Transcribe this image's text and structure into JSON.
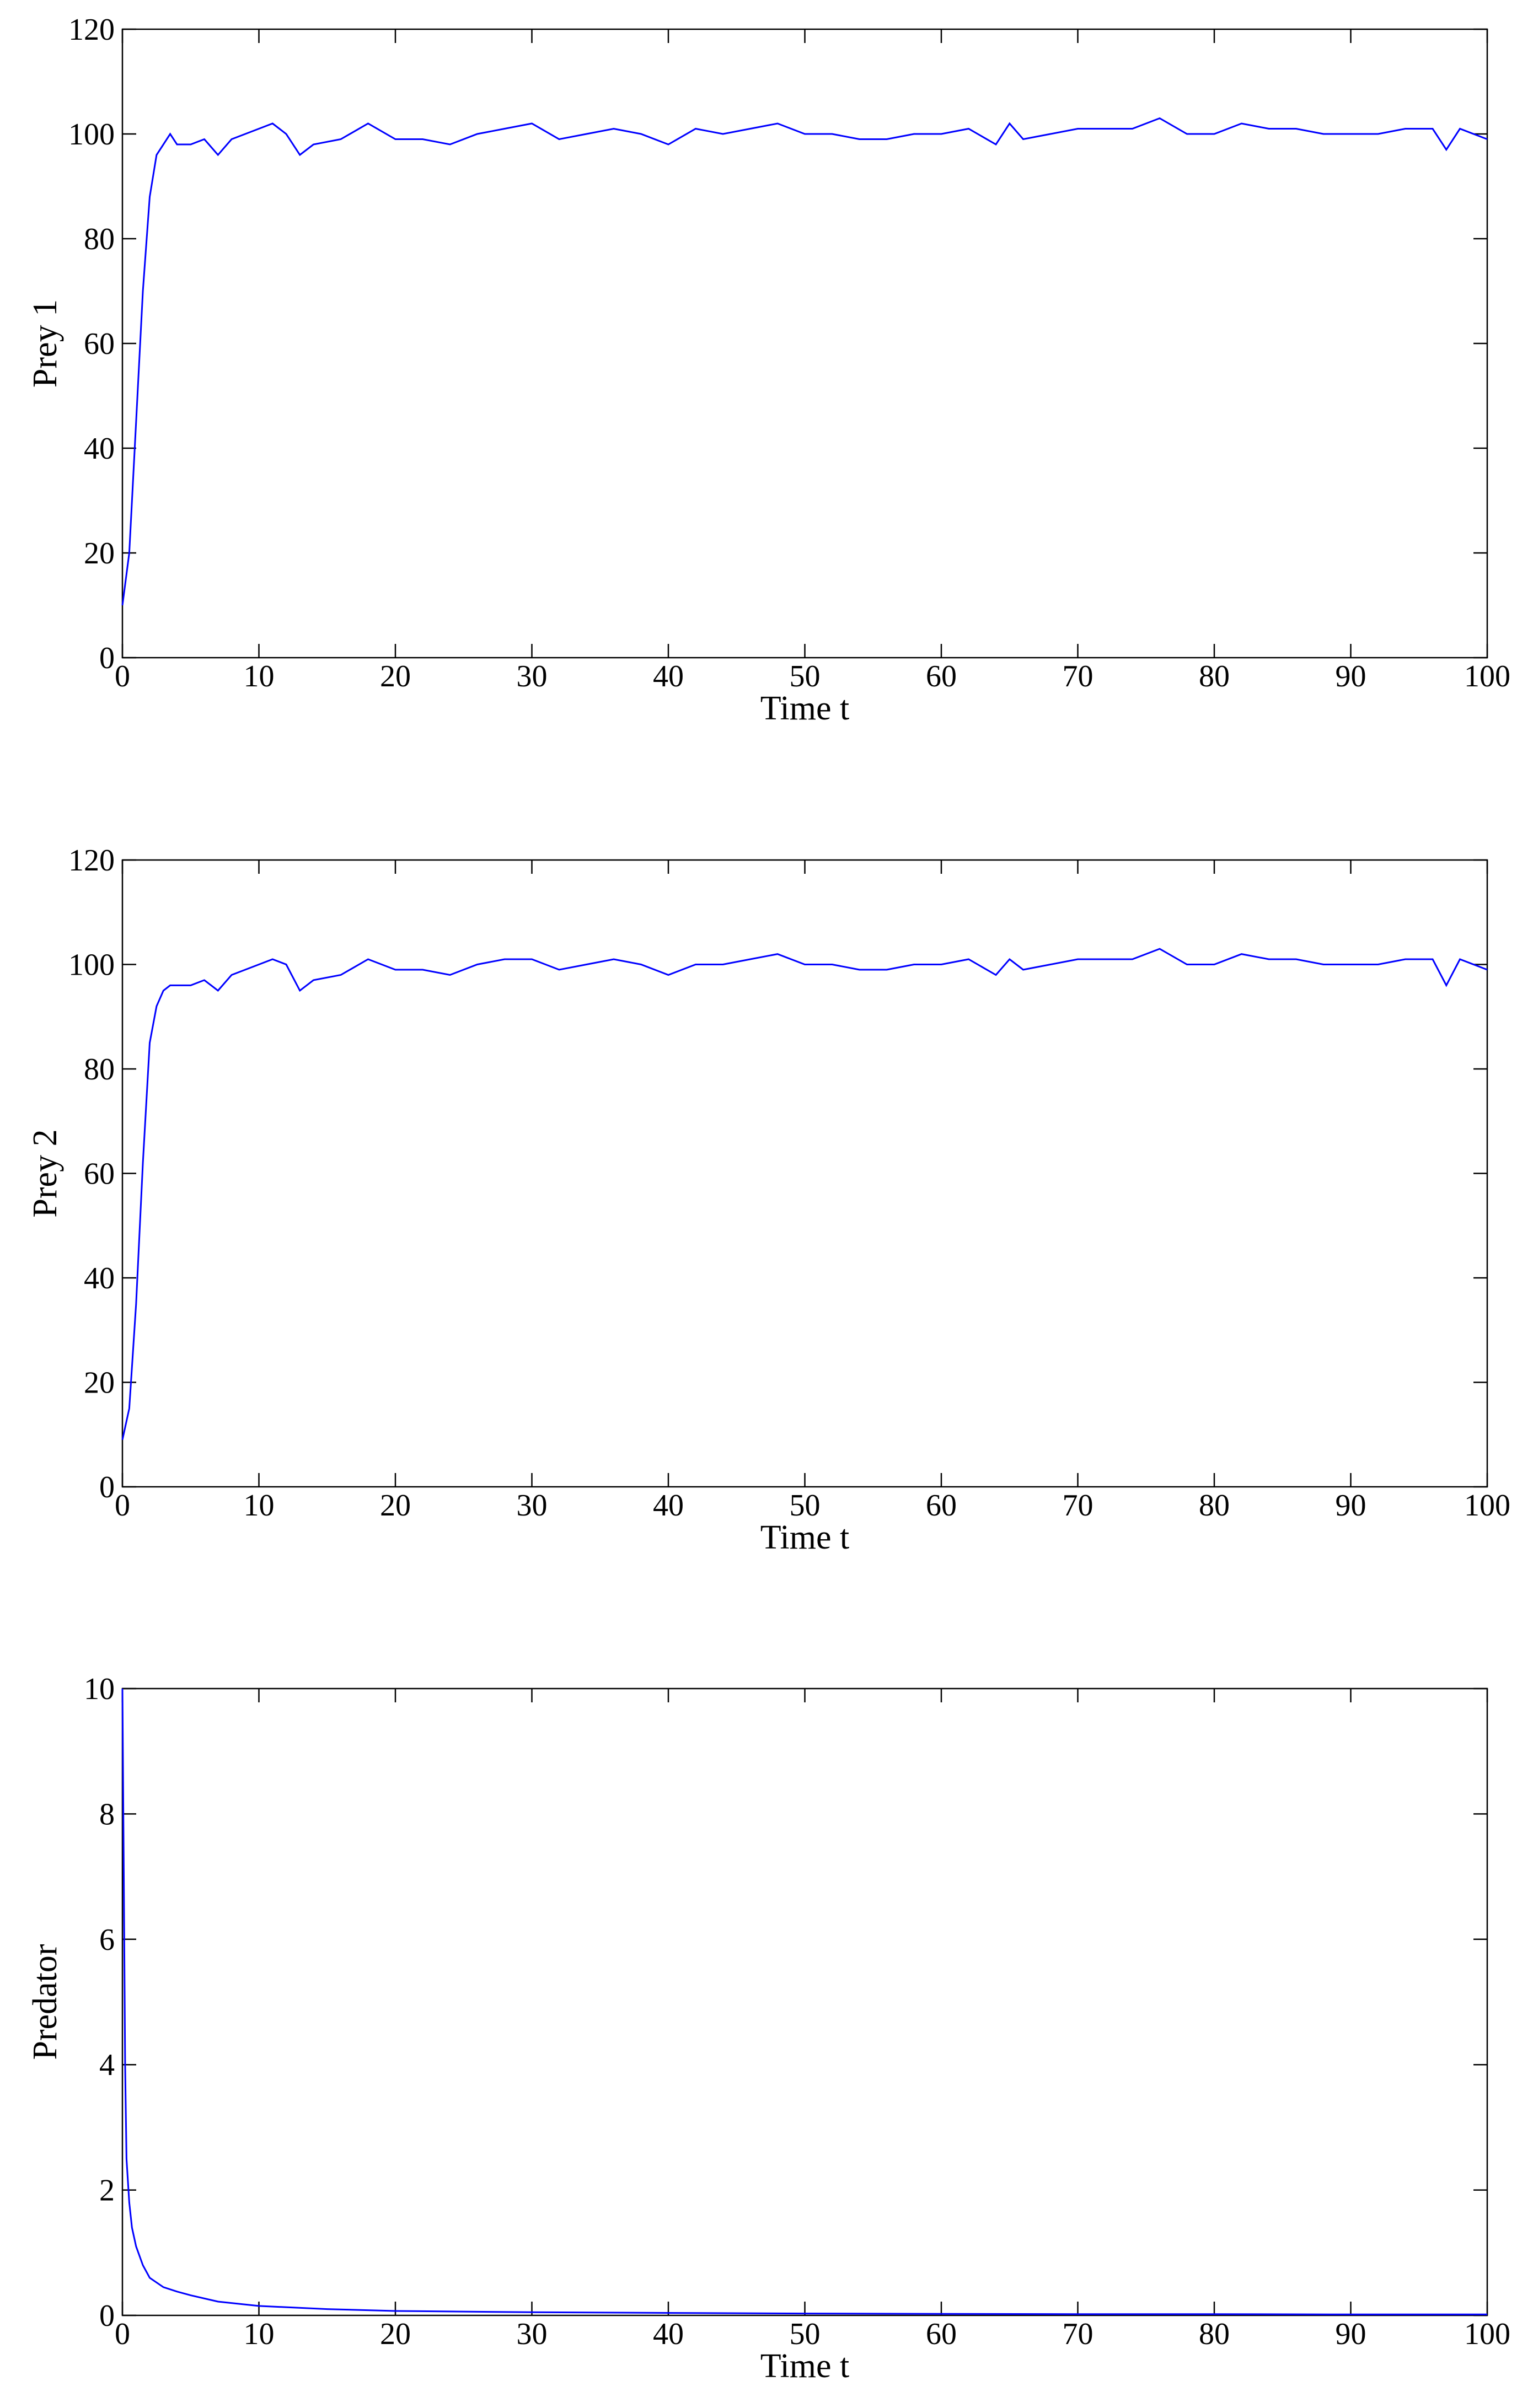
{
  "chart_data": [
    {
      "type": "line",
      "xlabel": "Time t",
      "ylabel": "Prey 1",
      "color": "#0000ff",
      "x": [
        0,
        0.5,
        1,
        1.5,
        2,
        2.5,
        3,
        3.5,
        4,
        5,
        6,
        7,
        8,
        10,
        11,
        12,
        13,
        14,
        16,
        18,
        20,
        22,
        24,
        26,
        28,
        30,
        32,
        34,
        36,
        38,
        40,
        42,
        44,
        46,
        48,
        50,
        52,
        54,
        56,
        58,
        60,
        62,
        64,
        65,
        66,
        68,
        70,
        72,
        74,
        76,
        78,
        80,
        82,
        84,
        86,
        88,
        90,
        92,
        94,
        96,
        97,
        98,
        100
      ],
      "values": [
        10,
        20,
        45,
        70,
        88,
        96,
        98,
        100,
        98,
        98,
        99,
        96,
        99,
        101,
        102,
        100,
        96,
        98,
        99,
        102,
        99,
        99,
        98,
        100,
        101,
        102,
        99,
        100,
        101,
        100,
        98,
        101,
        100,
        101,
        102,
        100,
        100,
        99,
        99,
        100,
        100,
        101,
        98,
        102,
        99,
        100,
        101,
        101,
        101,
        103,
        100,
        100,
        102,
        101,
        101,
        100,
        100,
        100,
        101,
        101,
        97,
        101,
        99
      ],
      "xlim": [
        0,
        100
      ],
      "xticks": [
        0,
        10,
        20,
        30,
        40,
        50,
        60,
        70,
        80,
        90,
        100
      ],
      "ylim": [
        0,
        120
      ],
      "yticks": [
        0,
        20,
        40,
        60,
        80,
        100,
        120
      ]
    },
    {
      "type": "line",
      "xlabel": "Time t",
      "ylabel": "Prey 2",
      "color": "#0000ff",
      "x": [
        0,
        0.5,
        1,
        1.5,
        2,
        2.5,
        3,
        3.5,
        4,
        5,
        6,
        7,
        8,
        10,
        11,
        12,
        13,
        14,
        16,
        18,
        20,
        22,
        24,
        26,
        28,
        30,
        32,
        34,
        36,
        38,
        40,
        42,
        44,
        46,
        48,
        50,
        52,
        54,
        56,
        58,
        60,
        62,
        64,
        65,
        66,
        68,
        70,
        72,
        74,
        76,
        78,
        80,
        82,
        84,
        86,
        88,
        90,
        92,
        94,
        96,
        97,
        98,
        100
      ],
      "values": [
        9,
        15,
        35,
        62,
        85,
        92,
        95,
        96,
        96,
        96,
        97,
        95,
        98,
        100,
        101,
        100,
        95,
        97,
        98,
        101,
        99,
        99,
        98,
        100,
        101,
        101,
        99,
        100,
        101,
        100,
        98,
        100,
        100,
        101,
        102,
        100,
        100,
        99,
        99,
        100,
        100,
        101,
        98,
        101,
        99,
        100,
        101,
        101,
        101,
        103,
        100,
        100,
        102,
        101,
        101,
        100,
        100,
        100,
        101,
        101,
        96,
        101,
        99
      ],
      "xlim": [
        0,
        100
      ],
      "xticks": [
        0,
        10,
        20,
        30,
        40,
        50,
        60,
        70,
        80,
        90,
        100
      ],
      "ylim": [
        0,
        120
      ],
      "yticks": [
        0,
        20,
        40,
        60,
        80,
        100,
        120
      ]
    },
    {
      "type": "line",
      "xlabel": "Time t",
      "ylabel": "Predator",
      "color": "#0000ff",
      "x": [
        0,
        0.1,
        0.2,
        0.3,
        0.5,
        0.7,
        1,
        1.5,
        2,
        3,
        4,
        5,
        7,
        10,
        15,
        20,
        30,
        40,
        50,
        60,
        70,
        80,
        90,
        100
      ],
      "values": [
        10,
        7,
        4,
        2.5,
        1.8,
        1.4,
        1.1,
        0.8,
        0.6,
        0.45,
        0.38,
        0.32,
        0.22,
        0.15,
        0.1,
        0.07,
        0.05,
        0.04,
        0.03,
        0.025,
        0.02,
        0.02,
        0.015,
        0.015
      ],
      "xlim": [
        0,
        100
      ],
      "xticks": [
        0,
        10,
        20,
        30,
        40,
        50,
        60,
        70,
        80,
        90,
        100
      ],
      "ylim": [
        0,
        10
      ],
      "yticks": [
        0,
        2,
        4,
        6,
        8,
        10
      ]
    }
  ]
}
